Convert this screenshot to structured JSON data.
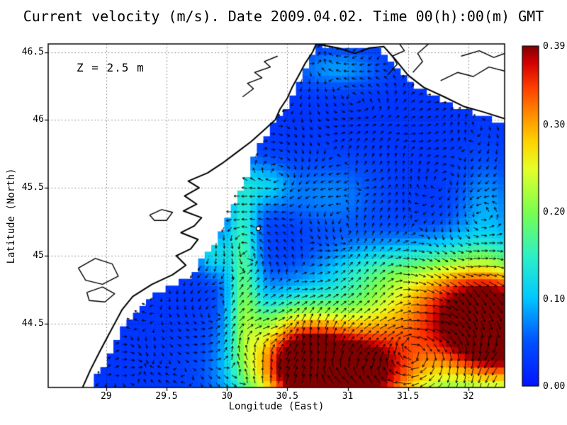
{
  "figure": {
    "title": "Current velocity (m/s). Date 2009.04.02. Time 00(h):00(m) GMT",
    "annotation": "Z = 2.5 m",
    "xlabel": "Longitude (East)",
    "ylabel": "Latitude (North)"
  },
  "chart_data": {
    "type": "heatmap",
    "subtype": "ocean-current-velocity-field-with-vectors",
    "title": "Current velocity (m/s). Date 2009.04.02. Time 00(h):00(m) GMT",
    "depth_annotation": "Z = 2.5 m",
    "date": "2009.04.02",
    "time": "00(h):00(m) GMT",
    "units": "m/s",
    "xlabel": "Longitude (East)",
    "ylabel": "Latitude (North)",
    "x_range": [
      28.52,
      32.3
    ],
    "y_range": [
      44.03,
      46.56
    ],
    "x_ticks": [
      29,
      29.5,
      30,
      30.5,
      31,
      31.5,
      32
    ],
    "x_tick_labels": [
      "29",
      "29.5",
      "30",
      "30.5",
      "31",
      "31.5",
      "32"
    ],
    "y_ticks": [
      44.5,
      45,
      45.5,
      46,
      46.5
    ],
    "y_tick_labels": [
      "44.5",
      "45",
      "45.5",
      "46",
      "46.5"
    ],
    "grid_style": "dotted",
    "colorbar": {
      "min": 0,
      "max": 0.39,
      "tick_values": [
        0.39,
        0.3,
        0.2,
        0.1,
        0.0
      ],
      "tick_labels": [
        "0.39",
        "0.30",
        "0.20",
        "0.10",
        "0.00"
      ],
      "colormap_stops": [
        [
          0.0,
          "#0014ff"
        ],
        [
          0.13,
          "#0050ff"
        ],
        [
          0.26,
          "#00c8ff"
        ],
        [
          0.38,
          "#2cf0c8"
        ],
        [
          0.51,
          "#78ff50"
        ],
        [
          0.64,
          "#e6ff28"
        ],
        [
          0.72,
          "#ffd200"
        ],
        [
          0.8,
          "#ff8c00"
        ],
        [
          0.88,
          "#ff3c00"
        ],
        [
          0.95,
          "#d40000"
        ],
        [
          1.0,
          "#800000"
        ]
      ]
    },
    "field_model": {
      "base_speed": 0.028,
      "speed_blobs": [
        [
          31.05,
          44.1,
          0.5,
          0.25,
          0.33
        ],
        [
          32.3,
          44.4,
          0.35,
          0.3,
          0.36
        ],
        [
          31.65,
          44.5,
          0.6,
          0.22,
          0.18
        ],
        [
          31.9,
          44.82,
          0.45,
          0.2,
          0.16
        ],
        [
          30.55,
          44.42,
          0.28,
          0.22,
          0.15
        ],
        [
          30.7,
          44.12,
          0.35,
          0.2,
          0.18
        ],
        [
          30.14,
          44.7,
          0.1,
          0.35,
          0.12
        ],
        [
          30.12,
          45.3,
          0.09,
          0.3,
          0.08
        ],
        [
          30.32,
          45.52,
          0.14,
          0.12,
          0.07
        ],
        [
          29.88,
          45.02,
          0.1,
          0.12,
          0.09
        ],
        [
          30.85,
          45.45,
          0.3,
          0.18,
          0.045
        ],
        [
          30.92,
          46.38,
          0.25,
          0.1,
          0.055
        ],
        [
          32.15,
          45.35,
          0.18,
          0.25,
          0.055
        ],
        [
          31.15,
          44.9,
          0.3,
          0.15,
          0.06
        ]
      ],
      "vortices": [
        [
          31.45,
          44.3,
          0.6,
          1.0
        ],
        [
          30.2,
          44.95,
          0.3,
          -0.55
        ],
        [
          30.45,
          45.55,
          0.25,
          0.45
        ],
        [
          31.05,
          45.25,
          0.35,
          -0.45
        ],
        [
          31.6,
          45.6,
          0.3,
          0.4
        ],
        [
          30.8,
          46.25,
          0.22,
          -0.35
        ],
        [
          31.95,
          45.15,
          0.3,
          -0.4
        ],
        [
          32.05,
          45.85,
          0.22,
          0.35
        ],
        [
          29.85,
          44.45,
          0.25,
          -0.35
        ],
        [
          30.4,
          46.3,
          0.18,
          0.3
        ],
        [
          31.35,
          46.05,
          0.25,
          -0.3
        ],
        [
          29.6,
          44.2,
          0.2,
          0.3
        ],
        [
          30.9,
          44.75,
          0.3,
          -0.4
        ]
      ]
    },
    "geography": {
      "coast_west": [
        [
          28.8,
          44.02
        ],
        [
          28.87,
          44.16
        ],
        [
          28.95,
          44.3
        ],
        [
          29.01,
          44.4
        ],
        [
          29.07,
          44.5
        ],
        [
          29.13,
          44.6
        ],
        [
          29.22,
          44.7
        ],
        [
          29.38,
          44.79
        ],
        [
          29.55,
          44.86
        ],
        [
          29.66,
          44.93
        ],
        [
          29.58,
          45.0
        ],
        [
          29.7,
          45.05
        ],
        [
          29.76,
          45.12
        ],
        [
          29.62,
          45.17
        ],
        [
          29.73,
          45.22
        ],
        [
          29.79,
          45.28
        ],
        [
          29.64,
          45.33
        ],
        [
          29.75,
          45.38
        ],
        [
          29.65,
          45.44
        ],
        [
          29.77,
          45.5
        ],
        [
          29.68,
          45.55
        ],
        [
          29.84,
          45.61
        ],
        [
          29.96,
          45.68
        ],
        [
          30.08,
          45.76
        ],
        [
          30.2,
          45.84
        ],
        [
          30.3,
          45.92
        ],
        [
          30.4,
          46.0
        ],
        [
          30.44,
          46.08
        ],
        [
          30.5,
          46.16
        ],
        [
          30.54,
          46.24
        ],
        [
          30.59,
          46.32
        ],
        [
          30.65,
          46.42
        ],
        [
          30.71,
          46.5
        ],
        [
          30.74,
          46.56
        ]
      ],
      "coast_north": [
        [
          30.74,
          46.56
        ],
        [
          30.92,
          46.53
        ],
        [
          31.06,
          46.49
        ],
        [
          31.18,
          46.53
        ],
        [
          31.3,
          46.54
        ],
        [
          31.4,
          46.44
        ],
        [
          31.5,
          46.33
        ],
        [
          31.63,
          46.24
        ],
        [
          31.8,
          46.17
        ],
        [
          31.96,
          46.1
        ],
        [
          32.12,
          46.06
        ],
        [
          32.3,
          46.01
        ]
      ],
      "sea_mask_west": [
        [
          44.03,
          28.88
        ],
        [
          44.3,
          29.04
        ],
        [
          44.5,
          29.16
        ],
        [
          44.7,
          29.38
        ],
        [
          44.85,
          29.7
        ],
        [
          45.0,
          29.82
        ],
        [
          45.15,
          29.94
        ],
        [
          45.35,
          30.04
        ],
        [
          45.55,
          30.14
        ],
        [
          45.75,
          30.24
        ],
        [
          45.95,
          30.36
        ],
        [
          46.15,
          30.54
        ],
        [
          46.35,
          30.64
        ],
        [
          46.56,
          30.74
        ]
      ],
      "sea_mask_north": [
        [
          30.74,
          46.56
        ],
        [
          31.28,
          46.52
        ],
        [
          31.4,
          46.4
        ],
        [
          31.5,
          46.3
        ],
        [
          31.62,
          46.22
        ],
        [
          31.78,
          46.15
        ],
        [
          31.95,
          46.08
        ],
        [
          32.3,
          45.97
        ]
      ],
      "land_contours": [
        [
          [
            30.13,
            46.17
          ],
          [
            30.22,
            46.23
          ],
          [
            30.17,
            46.27
          ],
          [
            30.29,
            46.31
          ],
          [
            30.23,
            46.35
          ],
          [
            30.36,
            46.39
          ],
          [
            30.31,
            46.43
          ],
          [
            30.42,
            46.47
          ]
        ],
        [
          [
            31.33,
            46.33
          ],
          [
            31.41,
            46.41
          ],
          [
            31.37,
            46.47
          ],
          [
            31.47,
            46.51
          ],
          [
            31.43,
            46.56
          ]
        ],
        [
          [
            31.54,
            46.35
          ],
          [
            31.62,
            46.43
          ],
          [
            31.58,
            46.49
          ],
          [
            31.67,
            46.56
          ]
        ],
        [
          [
            31.77,
            46.29
          ],
          [
            31.91,
            46.35
          ],
          [
            32.04,
            46.32
          ],
          [
            32.17,
            46.39
          ],
          [
            32.3,
            46.36
          ]
        ],
        [
          [
            31.94,
            46.47
          ],
          [
            32.09,
            46.51
          ],
          [
            32.21,
            46.46
          ],
          [
            32.3,
            46.49
          ]
        ],
        [
          [
            28.77,
            44.91
          ],
          [
            28.91,
            44.98
          ],
          [
            29.05,
            44.94
          ],
          [
            29.1,
            44.85
          ],
          [
            28.97,
            44.79
          ],
          [
            28.83,
            44.82
          ],
          [
            28.77,
            44.91
          ]
        ],
        [
          [
            28.84,
            44.73
          ],
          [
            28.97,
            44.77
          ],
          [
            29.07,
            44.72
          ],
          [
            28.99,
            44.66
          ],
          [
            28.86,
            44.67
          ],
          [
            28.84,
            44.73
          ]
        ],
        [
          [
            29.36,
            45.3
          ],
          [
            29.46,
            45.34
          ],
          [
            29.55,
            45.32
          ],
          [
            29.5,
            45.26
          ],
          [
            29.4,
            45.26
          ],
          [
            29.36,
            45.3
          ]
        ]
      ],
      "island": {
        "lon": 30.26,
        "lat": 45.2,
        "radius_px": 3
      }
    }
  }
}
